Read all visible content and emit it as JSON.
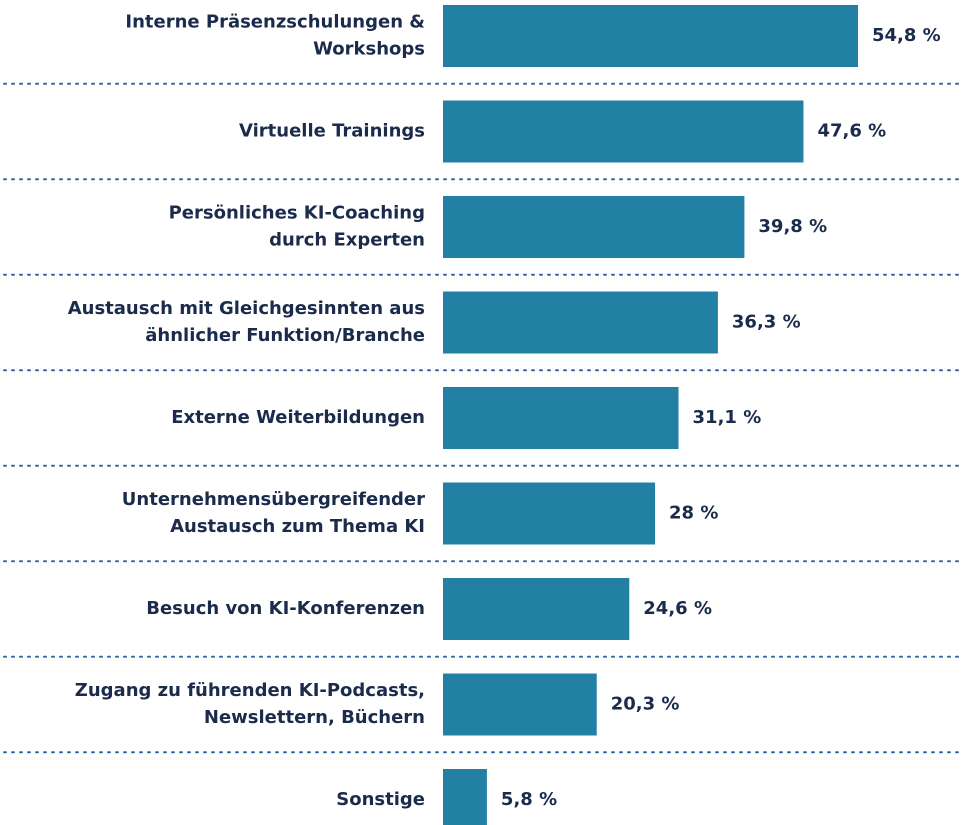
{
  "chart_data": {
    "type": "bar",
    "orientation": "horizontal",
    "color": "#2380a5",
    "categories": [
      [
        "Interne Präsenzschulungen &",
        "Workshops"
      ],
      [
        "Virtuelle Trainings"
      ],
      [
        "Persönliches KI-Coaching",
        "durch Experten"
      ],
      [
        "Austausch mit Gleichgesinnten aus",
        "ähnlicher Funktion/Branche"
      ],
      [
        "Externe Weiterbildungen"
      ],
      [
        "Unternehmensübergreifender",
        "Austausch zum Thema KI"
      ],
      [
        "Besuch von KI-Konferenzen"
      ],
      [
        "Zugang zu führenden KI-Podcasts,",
        "Newslettern, Büchern"
      ],
      [
        "Sonstige"
      ]
    ],
    "values": [
      54.8,
      47.6,
      39.8,
      36.3,
      31.1,
      28,
      24.6,
      20.3,
      5.8
    ],
    "value_labels": [
      "54,8 %",
      "47,6 %",
      "39,8 %",
      "36,3 %",
      "31,1 %",
      "28 %",
      "24,6 %",
      "20,3 %",
      "5,8 %"
    ]
  }
}
